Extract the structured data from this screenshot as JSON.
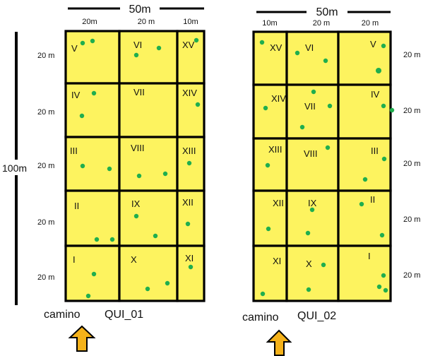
{
  "diagram": {
    "height_label": "100m",
    "plots": [
      {
        "name": "QUI_01",
        "path_label": "camino",
        "total_width_label": "50m",
        "column_width_labels": [
          "20m",
          "20 m",
          "10m"
        ],
        "row_height_labels": [
          "20 m",
          "20 m",
          "20 m",
          "20 m",
          "20 m"
        ],
        "cell_labels": [
          [
            "V",
            "VI",
            "XV"
          ],
          [
            "IV",
            "VII",
            "XIV"
          ],
          [
            "III",
            "VIII",
            "XIII"
          ],
          [
            "II",
            "IX",
            "XII"
          ],
          [
            "I",
            "X",
            "XI"
          ]
        ]
      },
      {
        "name": "QUI_02",
        "path_label": "camino",
        "total_width_label": "50m",
        "column_width_labels": [
          "10m",
          "20 m",
          "20 m"
        ],
        "row_height_labels": [
          "20 m",
          "20 m",
          "20 m",
          "20 m",
          "20 m"
        ],
        "cell_labels": [
          [
            "XV",
            "VI",
            "V"
          ],
          [
            "XIV",
            "VII",
            "IV"
          ],
          [
            "XIII",
            "VIII",
            "III"
          ],
          [
            "XII",
            "IX",
            "II"
          ],
          [
            "XI",
            "X",
            "I"
          ]
        ]
      }
    ],
    "colors": {
      "cell_fill": "#fdf35f",
      "grid_line": "#000000",
      "tree_dot": "#1fae4e",
      "arrow": "#f5b21a"
    },
    "icons": [
      "up-arrow-icon"
    ]
  }
}
